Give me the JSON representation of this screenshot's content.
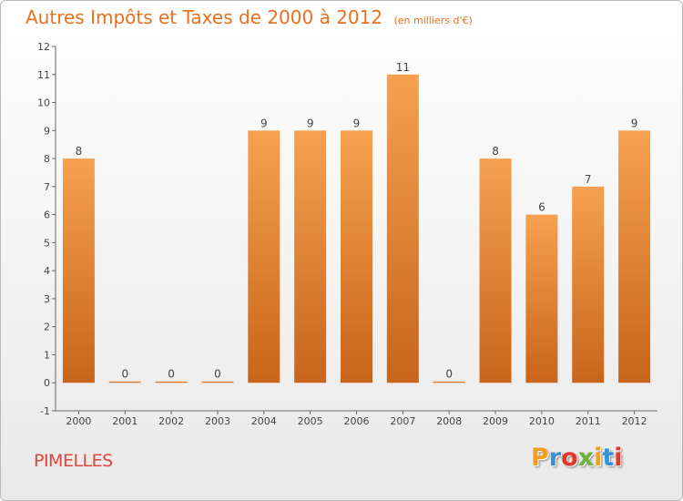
{
  "header": {
    "title": "Autres Impôts et Taxes de 2000 à 2012",
    "subtitle": "(en milliers d'€)"
  },
  "footer": {
    "commune": "PIMELLES",
    "brand": "Proxiti"
  },
  "colors": {
    "accent": "#e8701e",
    "commune": "#e0453e",
    "bar_top": "#f6a150",
    "bar_bottom": "#c8651a",
    "brand": [
      "#f0a020",
      "#3a8fd8",
      "#e03a2f",
      "#6cb33f",
      "#f0a020",
      "#3a8fd8",
      "#e03a2f"
    ]
  },
  "chart_data": {
    "type": "bar",
    "categories": [
      "2000",
      "2001",
      "2002",
      "2003",
      "2004",
      "2005",
      "2006",
      "2007",
      "2008",
      "2009",
      "2010",
      "2011",
      "2012"
    ],
    "values": [
      8,
      0,
      0,
      0,
      9,
      9,
      9,
      11,
      0,
      8,
      6,
      7,
      9
    ],
    "data_labels": [
      "8",
      "0",
      "0",
      "0",
      "9",
      "9",
      "9",
      "11",
      "0",
      "8",
      "6",
      "7",
      "9"
    ],
    "y_ticks": [
      "-1",
      "0",
      "1",
      "2",
      "3",
      "4",
      "5",
      "6",
      "7",
      "8",
      "9",
      "10",
      "11",
      "12"
    ],
    "ylim": [
      -1,
      12
    ],
    "grid": false,
    "legend": "none"
  }
}
